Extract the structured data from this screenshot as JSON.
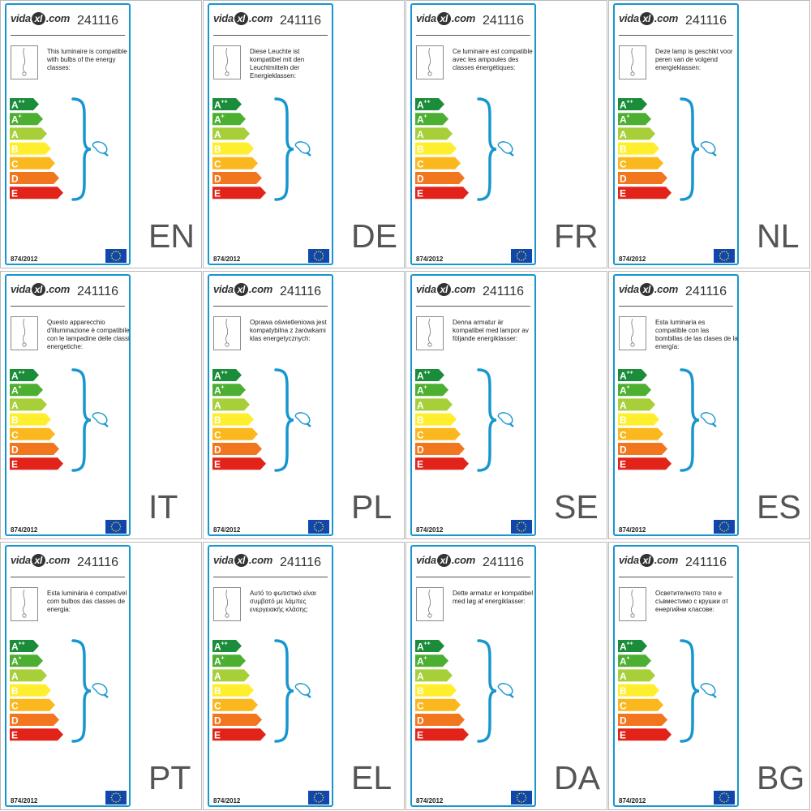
{
  "brand": {
    "prefix": "vida",
    "mark": "xl",
    "suffix": ".com"
  },
  "article_number": "241116",
  "regulation": "874/2012",
  "classes": [
    {
      "base": "A",
      "sup": "++",
      "color": "#1a8c3a"
    },
    {
      "base": "A",
      "sup": "+",
      "color": "#4caf32"
    },
    {
      "base": "A",
      "sup": "",
      "color": "#a7cf3a"
    },
    {
      "base": "B",
      "sup": "",
      "color": "#ffee2e"
    },
    {
      "base": "C",
      "sup": "",
      "color": "#fbb81e"
    },
    {
      "base": "D",
      "sup": "",
      "color": "#f2761e"
    },
    {
      "base": "E",
      "sup": "",
      "color": "#e2231a"
    }
  ],
  "colors": {
    "accent": "#1796cf",
    "eu_flag": "#0f47af",
    "eu_stars": "#ffdd00"
  },
  "icons": {
    "luminaire": "pendant-lamp-icon",
    "bulb": "bulb-icon",
    "flag": "eu-flag-icon"
  },
  "labels": [
    {
      "lang": "EN",
      "text": "This luminaire is compatible with bulbs of the energy classes:"
    },
    {
      "lang": "DE",
      "text": "Diese Leuchte ist kompatibel mit den Leuchtmitteln der Energieklassen:"
    },
    {
      "lang": "FR",
      "text": "Ce luminaire est compatible avec les ampoules des classes énergétiques:"
    },
    {
      "lang": "NL",
      "text": "Deze lamp is geschikt voor peren van de volgend energieklassen:"
    },
    {
      "lang": "IT",
      "text": "Questo apparecchio d'illuminazione è compatibile con le lampadine delle classi energetiche:"
    },
    {
      "lang": "PL",
      "text": "Oprawa oświetleniowa jest kompatybilna z żarówkami klas energetycznych:"
    },
    {
      "lang": "SE",
      "text": "Denna armatur är kompatibel med lampor av följande energiklasser:"
    },
    {
      "lang": "ES",
      "text": "Esta luminaria es compatible con las bombillas de las clases de la energía:"
    },
    {
      "lang": "PT",
      "text": "Esta luminária é compatível com bulbos das classes de energia:"
    },
    {
      "lang": "EL",
      "text": "Αυτό το φωτιστικό είναι συμβατό με λάμπες ενεργειακής κλάσης:"
    },
    {
      "lang": "DA",
      "text": "Dette armatur er kompatibel med løg af energiklasser:"
    },
    {
      "lang": "BG",
      "text": "Осветителното тяло е съвместимо с крушки от енергийни класове:"
    }
  ]
}
